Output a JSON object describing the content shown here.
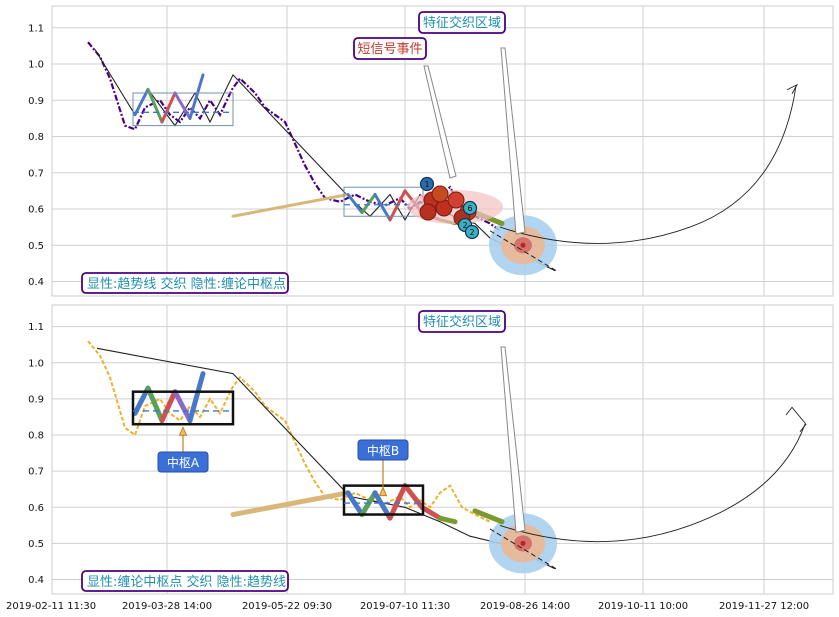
{
  "chart_data": [
    {
      "type": "line",
      "panel": "top",
      "ylim": [
        0.36,
        1.16
      ],
      "yticks": [
        "0.4",
        "0.5",
        "0.6",
        "0.7",
        "0.8",
        "0.9",
        "1.0",
        "1.1"
      ],
      "grid": true,
      "legend_box": "显性:趋势线 交织 隐性:缠论中枢点",
      "annotations": [
        {
          "text": "特征交织区域",
          "color": "#1f8fb0",
          "border": "#4b0082"
        },
        {
          "text": "短信号事件",
          "color": "#c0392b",
          "border": "#4b0082"
        }
      ],
      "signal_labels": [
        "1",
        "2",
        "6"
      ],
      "series": [
        {
          "values": [
            1.06,
            1.02,
            0.96,
            0.83,
            0.82,
            0.88,
            0.9,
            0.86,
            0.84,
            0.88,
            0.85,
            0.9,
            0.86,
            0.93,
            0.96,
            0.92,
            0.88,
            0.86,
            0.84,
            0.78,
            0.72,
            0.67,
            0.63,
            0.62,
            0.64,
            0.62,
            0.61,
            0.63,
            0.6,
            0.62,
            0.6,
            0.64,
            0.66,
            0.6,
            0.58,
            0.56,
            0.54
          ]
        },
        {
          "values": [
            1.04,
            0.86,
            0.93,
            0.83,
            0.92,
            0.84,
            0.97,
            0.63,
            0.58,
            0.64,
            0.57,
            0.64,
            0.6,
            0.57,
            0.56,
            0.52,
            0.5,
            0.48,
            0.45,
            0.43
          ]
        },
        {
          "values": [
            0.86,
            0.93,
            0.84,
            0.92,
            0.85,
            0.97,
            0.58,
            0.64,
            0.59,
            0.64,
            0.57,
            0.65,
            0.59,
            0.57,
            0.56
          ]
        },
        {
          "values": [
            0.5,
            0.54,
            0.6,
            0.7,
            0.8,
            0.85
          ]
        }
      ]
    },
    {
      "type": "line",
      "panel": "bottom",
      "ylim": [
        0.36,
        1.16
      ],
      "yticks": [
        "0.4",
        "0.5",
        "0.6",
        "0.7",
        "0.8",
        "0.9",
        "1.0",
        "1.1"
      ],
      "xticks": [
        "2019-02-11 11:30",
        "2019-03-28 14:00",
        "2019-05-22 09:30",
        "2019-07-10 11:30",
        "2019-08-26 14:00",
        "2019-10-11 10:00",
        "2019-11-27 12:00"
      ],
      "grid": true,
      "legend_box": "显性:缠论中枢点 交织 隐性:趋势线",
      "annotations": [
        {
          "text": "特征交织区域",
          "color": "#1f8fb0",
          "border": "#4b0082"
        },
        {
          "text": "中枢A",
          "color": "#ffffff",
          "fill": "#3a6fd8"
        },
        {
          "text": "中枢B",
          "color": "#ffffff",
          "fill": "#3a6fd8"
        }
      ],
      "series": [
        {
          "values": [
            1.06,
            1.02,
            0.96,
            0.82,
            0.8,
            0.88,
            0.9,
            0.86,
            0.84,
            0.88,
            0.85,
            0.9,
            0.86,
            0.93,
            0.96,
            0.92,
            0.88,
            0.86,
            0.84,
            0.78,
            0.72,
            0.67,
            0.63,
            0.62,
            0.64,
            0.62,
            0.61,
            0.63,
            0.6,
            0.62,
            0.6,
            0.64,
            0.66,
            0.6,
            0.58,
            0.56
          ]
        },
        {
          "values": [
            0.86,
            0.93,
            0.84,
            0.92,
            0.84,
            0.97,
            0.58,
            0.64,
            0.58,
            0.64,
            0.57,
            0.66,
            0.6,
            0.57,
            0.56
          ]
        },
        {
          "values": [
            1.04,
            0.97,
            0.63,
            0.6,
            0.56,
            0.52,
            0.5,
            0.48,
            0.45,
            0.43
          ]
        },
        {
          "values": [
            0.5,
            0.54,
            0.6,
            0.7,
            0.8,
            0.85
          ]
        }
      ]
    }
  ],
  "colors": {
    "purple_price": "#4b0082",
    "gold_price": "#f0b030",
    "trend_line": "#222222",
    "zs_blue": "#4a78c8",
    "zs_green": "#5aa05a",
    "zs_red": "#d05050",
    "zs_violet": "#8a6ac8",
    "zs_tan": "#d8b878",
    "olive": "#7a9a30",
    "halo_blue": "#a8d0ee",
    "halo_tan": "#e8b898",
    "halo_red": "#d06060"
  }
}
